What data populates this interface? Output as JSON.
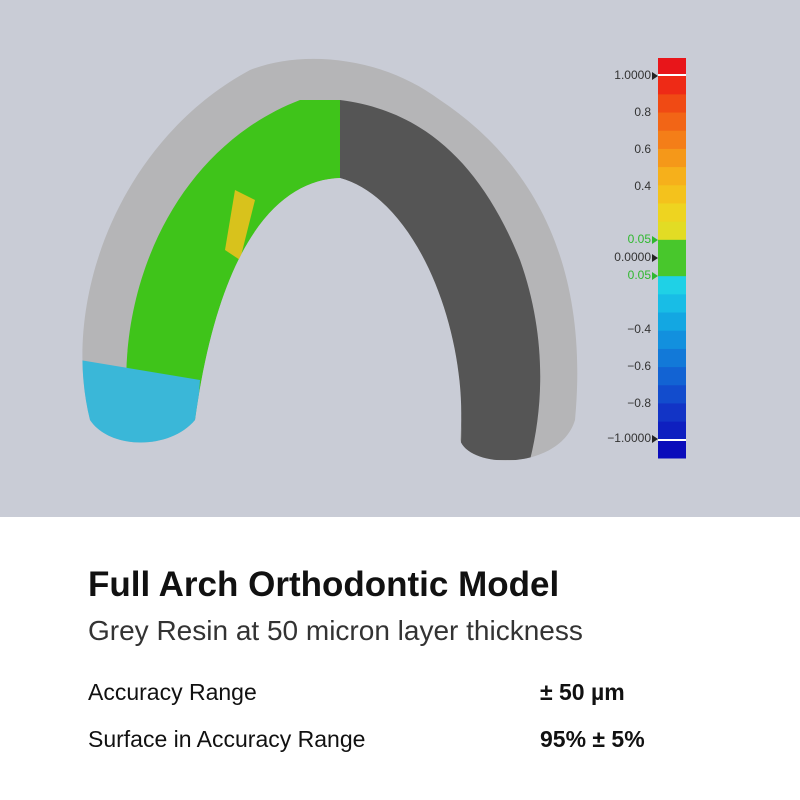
{
  "scale": {
    "labels": [
      "1.0000",
      "0.8",
      "0.6",
      "0.4",
      "0.05",
      "0.0000",
      "0.05",
      "−0.4",
      "−0.6",
      "−0.8",
      "−1.0000"
    ]
  },
  "header": {
    "title": "Full Arch Orthodontic Model",
    "subtitle": "Grey Resin at 50 micron layer thickness"
  },
  "specs": {
    "rows": [
      [
        "Accuracy Range",
        "± 50 µm"
      ],
      [
        "Surface in Accuracy Range",
        "95% ± 5%"
      ]
    ]
  }
}
